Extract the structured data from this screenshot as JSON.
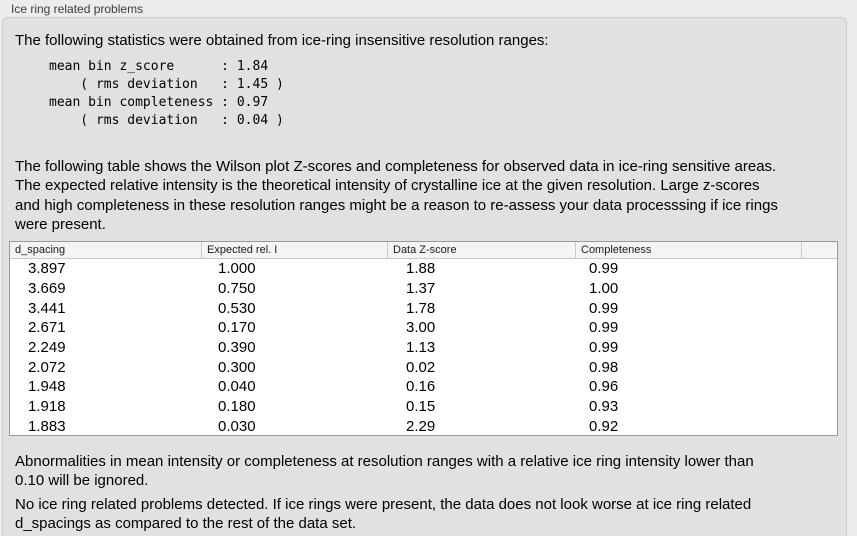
{
  "window": {
    "group_title": "Ice ring related problems"
  },
  "intro": "The following statistics were obtained from ice-ring insensitive resolution ranges:",
  "stats_block": [
    "mean bin z_score      : 1.84",
    "    ( rms deviation   : 1.45 )",
    "mean bin completeness : 0.97",
    "    ( rms deviation   : 0.04 )"
  ],
  "description": "The following table shows the Wilson plot Z-scores and completeness for observed data in ice-ring sensitive areas.\nThe expected relative intensity is the theoretical intensity of crystalline ice at the given resolution. Large z-scores\nand high completeness in these resolution ranges might be a reason to re-assess your data processsing if ice rings\nwere present.",
  "table": {
    "headers": [
      "d_spacing",
      "Expected rel. I",
      "Data Z-score",
      "Completeness",
      ""
    ],
    "rows": [
      [
        "3.897",
        "1.000",
        "1.88",
        "0.99"
      ],
      [
        "3.669",
        "0.750",
        "1.37",
        "1.00"
      ],
      [
        "3.441",
        "0.530",
        "1.78",
        "0.99"
      ],
      [
        "2.671",
        "0.170",
        "3.00",
        "0.99"
      ],
      [
        "2.249",
        "0.390",
        "1.13",
        "0.99"
      ],
      [
        "2.072",
        "0.300",
        "0.02",
        "0.98"
      ],
      [
        "1.948",
        "0.040",
        "0.16",
        "0.96"
      ],
      [
        "1.918",
        "0.180",
        "0.15",
        "0.93"
      ],
      [
        "1.883",
        "0.030",
        "2.29",
        "0.92"
      ]
    ]
  },
  "note_ignore": "Abnormalities in mean intensity or completeness at resolution ranges with a relative ice ring intensity lower than\n0.10 will be ignored.",
  "conclusion": "No ice ring related problems detected. If ice rings were present, the data does not look worse at ice ring related\nd_spacings as compared to the rest of the data set.",
  "colors": {
    "page_bg": "#ececec",
    "panel_bg": "#e1e1e1",
    "table_border": "#9a9a9a",
    "table_header_bg": "#f4f4f4"
  }
}
